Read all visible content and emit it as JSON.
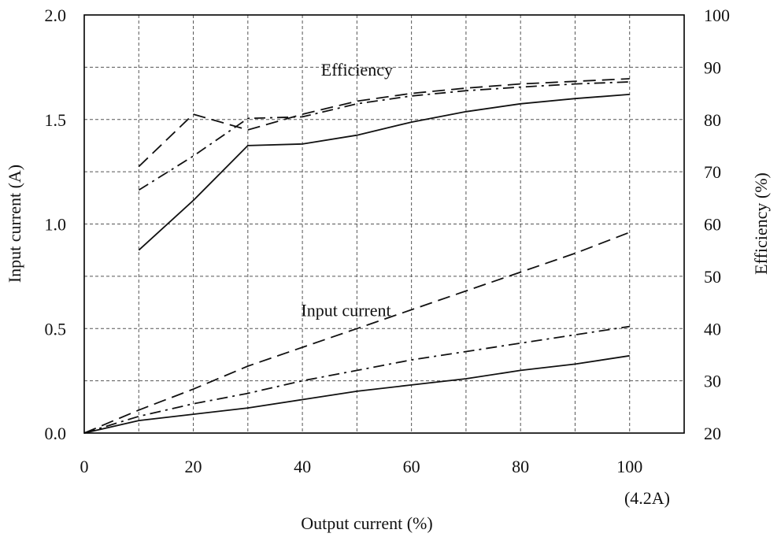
{
  "chart_data": {
    "type": "line",
    "xlabel": "Output current (%)",
    "xnote": "(4.2A)",
    "ylabel": "Input current (A)",
    "y2label": "Efficiency (%)",
    "xlim": [
      0,
      110
    ],
    "ylim": [
      0,
      2.0
    ],
    "y2lim": [
      20,
      100
    ],
    "xticks": [
      "0",
      "20",
      "40",
      "60",
      "80",
      "100"
    ],
    "yticks": [
      "0.0",
      "0.5",
      "1.0",
      "1.5",
      "2.0"
    ],
    "y2ticks": [
      "20",
      "30",
      "40",
      "50",
      "60",
      "70",
      "80",
      "90",
      "100"
    ],
    "grid": true,
    "annotations": [
      {
        "text": "Efficiency",
        "x": 50,
        "y": 1.71
      },
      {
        "text": "Input current",
        "x": 48,
        "y": 0.56
      }
    ],
    "series": [
      {
        "axis": "left",
        "style": "dashed",
        "x": [
          0,
          10,
          20,
          30,
          40,
          50,
          60,
          70,
          80,
          90,
          100
        ],
        "y": [
          0,
          0.11,
          0.21,
          0.32,
          0.41,
          0.5,
          0.59,
          0.68,
          0.77,
          0.86,
          0.96
        ]
      },
      {
        "axis": "left",
        "style": "dashdot",
        "x": [
          0,
          10,
          20,
          30,
          40,
          50,
          60,
          70,
          80,
          90,
          100
        ],
        "y": [
          0,
          0.08,
          0.14,
          0.19,
          0.25,
          0.3,
          0.35,
          0.39,
          0.43,
          0.47,
          0.51
        ]
      },
      {
        "axis": "left",
        "style": "solid",
        "x": [
          0,
          10,
          20,
          30,
          40,
          50,
          60,
          70,
          80,
          90,
          100
        ],
        "y": [
          0,
          0.06,
          0.09,
          0.12,
          0.16,
          0.2,
          0.23,
          0.26,
          0.3,
          0.33,
          0.37
        ]
      },
      {
        "axis": "right",
        "style": "dashed",
        "x": [
          10,
          20,
          30,
          40,
          50,
          60,
          70,
          80,
          90,
          100
        ],
        "y": [
          71,
          81,
          78,
          81,
          83.5,
          85,
          86,
          86.8,
          87.3,
          87.8
        ]
      },
      {
        "axis": "right",
        "style": "dashdot",
        "x": [
          10,
          20,
          30,
          40,
          50,
          60,
          70,
          80,
          90,
          100
        ],
        "y": [
          66.5,
          73,
          80.2,
          80.5,
          83,
          84.5,
          85.5,
          86.2,
          86.8,
          87.2
        ]
      },
      {
        "axis": "right",
        "style": "solid",
        "x": [
          10,
          20,
          30,
          40,
          50,
          60,
          70,
          80,
          90,
          100
        ],
        "y": [
          55,
          64.5,
          75,
          75.3,
          77,
          79.5,
          81.5,
          83,
          84,
          84.8
        ]
      }
    ]
  }
}
